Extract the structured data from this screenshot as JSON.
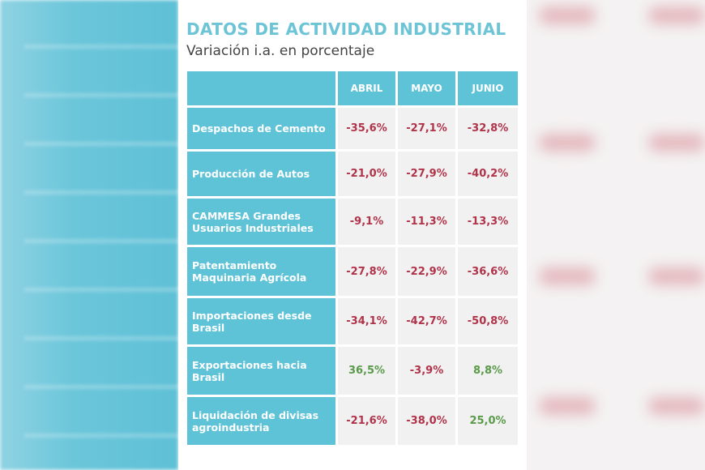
{
  "header": {
    "title": "DATOS DE ACTIVIDAD INDUSTRIAL",
    "subtitle": "Variación i.a. en porcentaje"
  },
  "colors": {
    "teal": "#5fc3d8",
    "negative": "#b0334a",
    "positive": "#5a9a4a"
  },
  "chart_data": {
    "type": "table",
    "title": "DATOS DE ACTIVIDAD INDUSTRIAL",
    "subtitle": "Variación i.a. en porcentaje",
    "columns": [
      "ABRIL",
      "MAYO",
      "JUNIO"
    ],
    "rows": [
      {
        "label": "Despachos de Cemento",
        "values": [
          "-35,6%",
          "-27,1%",
          "-32,8%"
        ]
      },
      {
        "label": "Producción de Autos",
        "values": [
          "-21,0%",
          "-27,9%",
          "-40,2%"
        ]
      },
      {
        "label": "CAMMESA Grandes Usuarios Industriales",
        "values": [
          "-9,1%",
          "-11,3%",
          "-13,3%"
        ]
      },
      {
        "label": "Patentamiento Maquinaria Agrícola",
        "values": [
          "-27,8%",
          "-22,9%",
          "-36,6%"
        ]
      },
      {
        "label": "Importaciones desde Brasil",
        "values": [
          "-34,1%",
          "-42,7%",
          "-50,8%"
        ]
      },
      {
        "label": "Exportaciones hacia Brasil",
        "values": [
          "36,5%",
          "-3,9%",
          "8,8%"
        ]
      },
      {
        "label": "Liquidación de divisas agroindustria",
        "values": [
          "-21,6%",
          "-38,0%",
          "25,0%"
        ]
      }
    ]
  }
}
